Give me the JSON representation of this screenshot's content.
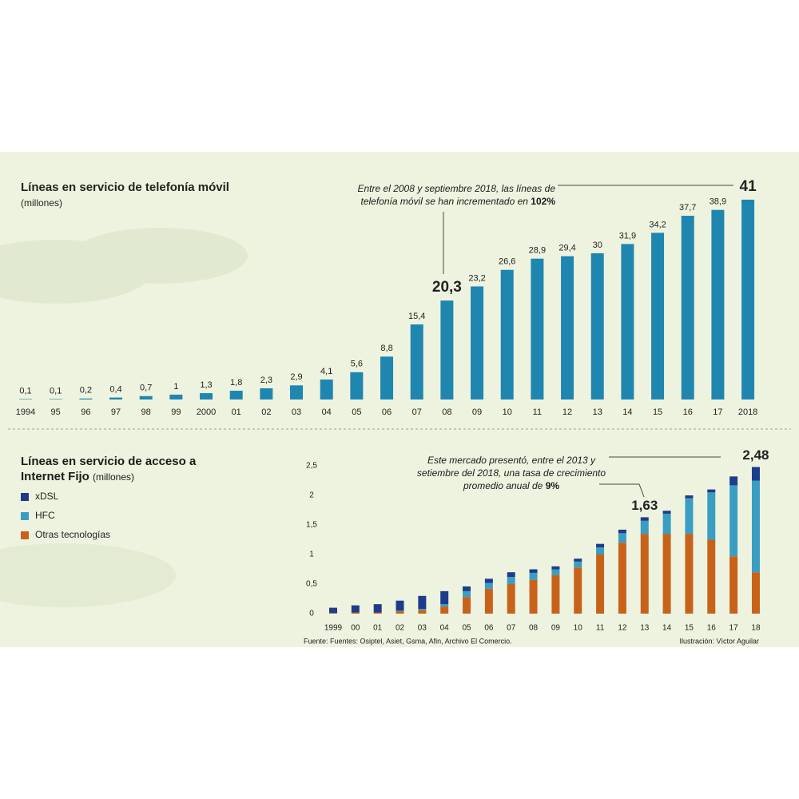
{
  "chart_data": [
    {
      "type": "bar",
      "title": "Líneas en servicio de telefonía móvil",
      "subtitle": "(millones)",
      "annotation": {
        "text": "Entre el 2008 y septiembre 2018, las líneas de telefonía móvil se han incrementado en",
        "highlight": "102%"
      },
      "categories": [
        "1994",
        "95",
        "96",
        "97",
        "98",
        "99",
        "2000",
        "01",
        "02",
        "03",
        "04",
        "05",
        "06",
        "07",
        "08",
        "09",
        "10",
        "11",
        "12",
        "13",
        "14",
        "15",
        "16",
        "17",
        "2018"
      ],
      "values": [
        0.1,
        0.1,
        0.2,
        0.4,
        0.7,
        1,
        1.3,
        1.8,
        2.3,
        2.9,
        4.1,
        5.6,
        8.8,
        15.4,
        20.3,
        23.2,
        26.6,
        28.9,
        29.4,
        30,
        31.9,
        34.2,
        37.7,
        38.9,
        41
      ],
      "value_labels": [
        "0,1",
        "0,1",
        "0,2",
        "0,4",
        "0,7",
        "1",
        "1,3",
        "1,8",
        "2,3",
        "2,9",
        "4,1",
        "5,6",
        "8,8",
        "15,4",
        "20,3",
        "23,2",
        "26,6",
        "28,9",
        "29,4",
        "30",
        "31,9",
        "34,2",
        "37,7",
        "38,9",
        "41"
      ],
      "emphasized": [
        "08",
        "2018"
      ],
      "color": "#1f86b0"
    },
    {
      "type": "stacked_bar",
      "title": "Líneas en servicio de acceso a Internet Fijo",
      "subtitle": "(millones)",
      "annotation": {
        "text": "Este mercado presentó, entre el 2013 y setiembre del 2018, una tasa de crecimiento promedio anual de",
        "highlight": "9%"
      },
      "categories": [
        "1999",
        "00",
        "01",
        "02",
        "03",
        "04",
        "05",
        "06",
        "07",
        "08",
        "09",
        "10",
        "11",
        "12",
        "13",
        "14",
        "15",
        "16",
        "17",
        "18"
      ],
      "series": [
        {
          "name": "Otras tecnologías",
          "color": "#c8621a",
          "values": [
            0.01,
            0.02,
            0.02,
            0.04,
            0.06,
            0.12,
            0.28,
            0.42,
            0.5,
            0.57,
            0.65,
            0.78,
            1.0,
            1.2,
            1.35,
            1.35,
            1.35,
            1.25,
            0.97,
            0.7
          ]
        },
        {
          "name": "HFC",
          "color": "#3a9ec2",
          "values": [
            0,
            0,
            0,
            0.01,
            0.02,
            0.04,
            0.1,
            0.1,
            0.12,
            0.12,
            0.1,
            0.1,
            0.12,
            0.16,
            0.22,
            0.34,
            0.6,
            0.8,
            1.2,
            1.55
          ]
        },
        {
          "name": "xDSL",
          "color": "#1d3c8c",
          "values": [
            0.09,
            0.12,
            0.14,
            0.17,
            0.22,
            0.22,
            0.08,
            0.07,
            0.08,
            0.06,
            0.05,
            0.05,
            0.06,
            0.06,
            0.06,
            0.05,
            0.05,
            0.05,
            0.15,
            0.23
          ]
        }
      ],
      "totals": [
        {
          "category": "13",
          "value": 1.63,
          "label": "1,63"
        },
        {
          "category": "18",
          "value": 2.48,
          "label": "2,48"
        }
      ],
      "ylim": [
        0,
        2.5
      ],
      "yticks": [
        0,
        {
          "value": 0.5,
          "label": "0,5"
        },
        1,
        {
          "value": 1.5,
          "label": "1,5"
        },
        2,
        {
          "value": 2.5,
          "label": "2,5"
        }
      ]
    }
  ],
  "footer": {
    "source": "Fuente: Fuentes: Osiptel, Asiet, Gsma, Afin, Archivo El Comercio.",
    "credit": "Ilustración: Víctor Aguilar"
  }
}
